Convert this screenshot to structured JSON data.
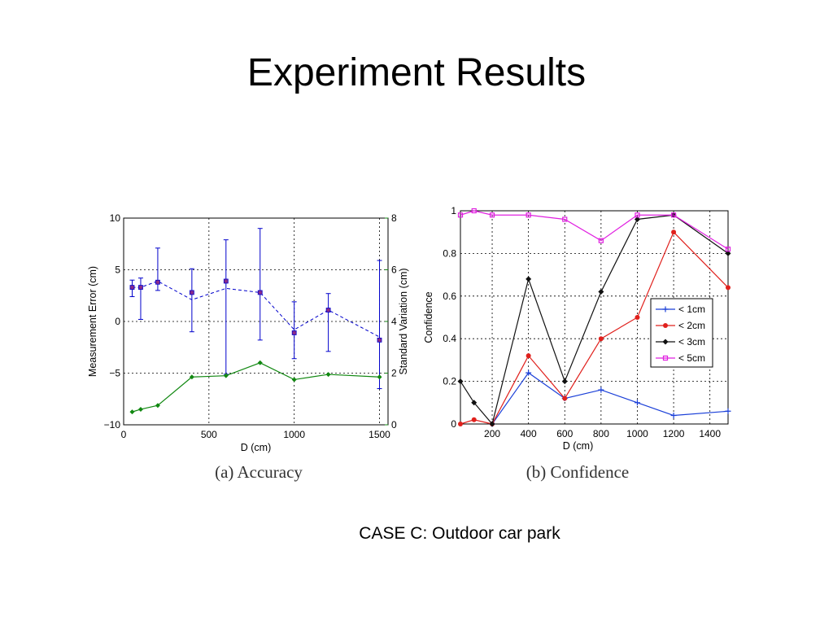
{
  "slide": {
    "title": "Experiment Results",
    "subtitle": "CASE C: Outdoor car park"
  },
  "captions": {
    "left": "(a) Accuracy",
    "right": "(b) Confidence"
  },
  "colors": {
    "blue": "#0000cc",
    "green": "#118811",
    "purple_marker": "#8a2b8a",
    "c1": "#1a3fd8",
    "c2": "#e0201c",
    "c3": "#111111",
    "c5": "#e020e0"
  },
  "chart_data": [
    {
      "type": "line",
      "xlabel": "D (cm)",
      "ylabel": "Measurement Error (cm)",
      "y2label": "Standard Variation (cm)",
      "xlim": [
        0,
        1550
      ],
      "ylim": [
        -10,
        10
      ],
      "y2lim": [
        0,
        8
      ],
      "xticks": [
        "0",
        "500",
        "1000",
        "1500"
      ],
      "xtick_values": [
        0,
        500,
        1000,
        1500
      ],
      "yticks": [
        "10",
        "5",
        "0",
        "−5",
        "−10"
      ],
      "ytick_values": [
        10,
        5,
        0,
        -5,
        -10
      ],
      "y2ticks": [
        "8",
        "6",
        "4",
        "2",
        "0"
      ],
      "y2tick_values": [
        8,
        6,
        4,
        2,
        0
      ],
      "grid": true,
      "series": [
        {
          "role": "error_mean",
          "x": [
            50,
            100,
            200,
            400,
            600,
            800,
            1000,
            1200,
            1500
          ],
          "y": [
            3.3,
            3.3,
            3.9,
            2.1,
            3.2,
            2.8,
            -0.8,
            1.1,
            -1.5
          ],
          "markers": [
            3.3,
            3.3,
            3.8,
            2.8,
            3.9,
            2.8,
            -1.1,
            1.1,
            -1.8
          ],
          "err_high": [
            4.0,
            4.2,
            7.1,
            5.1,
            7.9,
            9.0,
            1.9,
            2.7,
            5.9
          ],
          "err_low": [
            2.4,
            0.2,
            3.0,
            -1.0,
            -5.1,
            -1.8,
            -3.6,
            -2.9,
            -6.5
          ]
        },
        {
          "role": "std_variation",
          "x": [
            50,
            100,
            200,
            400,
            600,
            800,
            1000,
            1200,
            1500
          ],
          "y": [
            0.5,
            0.6,
            0.75,
            1.85,
            1.9,
            2.4,
            1.75,
            1.95,
            1.85
          ]
        }
      ]
    },
    {
      "type": "line",
      "xlabel": "D (cm)",
      "ylabel": "Confidence",
      "xlim": [
        25,
        1500
      ],
      "ylim": [
        0,
        1
      ],
      "xticks": [
        "200",
        "400",
        "600",
        "800",
        "1000",
        "1200",
        "1400"
      ],
      "xtick_values": [
        200,
        400,
        600,
        800,
        1000,
        1200,
        1400
      ],
      "yticks": [
        "1",
        "0.8",
        "0.6",
        "0.4",
        "0.2",
        "0"
      ],
      "ytick_values": [
        1,
        0.8,
        0.6,
        0.4,
        0.2,
        0
      ],
      "grid": true,
      "legend_position": "center-right",
      "series": [
        {
          "name": "< 1cm",
          "marker": "plus",
          "x": [
            200,
            400,
            600,
            800,
            1000,
            1200,
            1500
          ],
          "y": [
            0,
            0.24,
            0.12,
            0.16,
            0.1,
            0.04,
            0.06
          ]
        },
        {
          "name": "< 2cm",
          "marker": "circle",
          "x": [
            25,
            100,
            200,
            400,
            600,
            800,
            1000,
            1200,
            1500
          ],
          "y": [
            0,
            0.02,
            0,
            0.32,
            0.12,
            0.4,
            0.5,
            0.9,
            0.64
          ]
        },
        {
          "name": "< 3cm",
          "marker": "diamond",
          "x": [
            25,
            100,
            200,
            400,
            600,
            800,
            1000,
            1200,
            1500
          ],
          "y": [
            0.2,
            0.1,
            0,
            0.68,
            0.2,
            0.62,
            0.96,
            0.98,
            0.8
          ]
        },
        {
          "name": "< 5cm",
          "marker": "square",
          "x": [
            25,
            100,
            200,
            400,
            600,
            800,
            1000,
            1200,
            1500
          ],
          "y": [
            0.98,
            1.0,
            0.98,
            0.98,
            0.96,
            0.86,
            0.98,
            0.98,
            0.82
          ]
        }
      ]
    }
  ]
}
